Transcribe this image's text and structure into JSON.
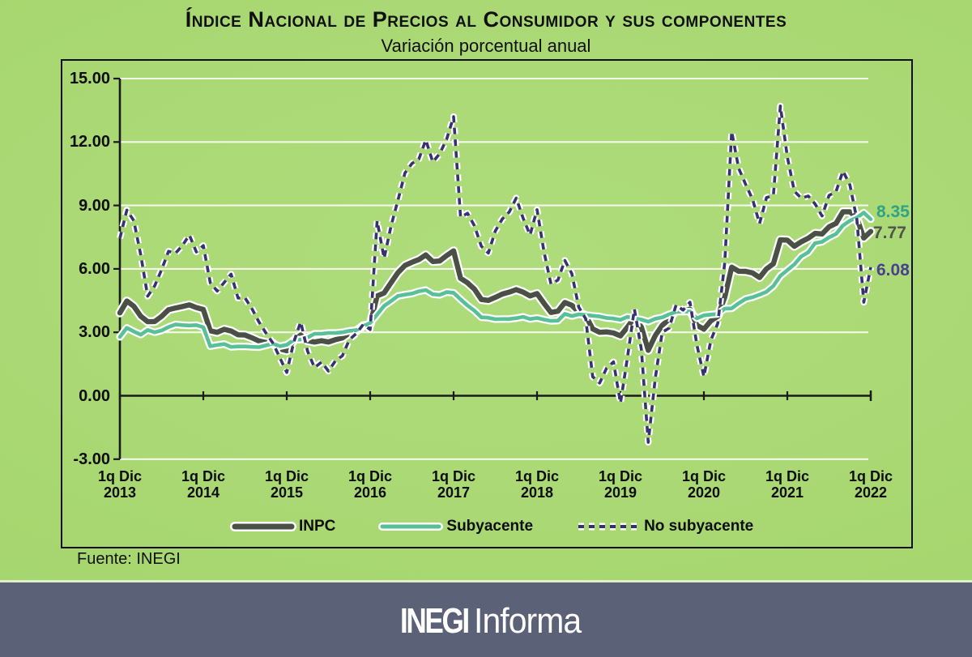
{
  "title": "Índice Nacional de Precios al Consumidor y sus componentes",
  "subtitle": "Variación porcentual anual",
  "source_note": "Fuente: INEGI",
  "footer": {
    "logo_bold": "INEGI",
    "logo_light": "Informa",
    "banner_color": "#5b6176"
  },
  "colors": {
    "background": "#a8d771",
    "frame_border": "#0f0f0f",
    "gridline": "#f4f9ea",
    "axis": "#1a1a1a",
    "halo": "#ffffff"
  },
  "chart_data": {
    "type": "line",
    "title": "Índice Nacional de Precios al Consumidor y sus componentes",
    "subtitle": "Variación porcentual anual",
    "xlabel": "",
    "ylabel": "",
    "ylim": [
      -3,
      15
    ],
    "grid": "horizontal",
    "legend_position": "bottom",
    "ytick_values": [
      15,
      12,
      9,
      6,
      3,
      0,
      -3
    ],
    "ytick_labels": [
      "15.00",
      "12.00",
      "9.00",
      "6.00",
      "3.00",
      "0.00",
      "-3.00"
    ],
    "x_tick_prefix": "1q Dic",
    "x_years": [
      "2013",
      "2014",
      "2015",
      "2016",
      "2017",
      "2018",
      "2019",
      "2020",
      "2021",
      "2022"
    ],
    "x_range": [
      "1q Dic 2013",
      "1q Dic 2022"
    ],
    "points_per_year": 12,
    "series": [
      {
        "name": "INPC",
        "style": "solid",
        "color": "#4a5045",
        "end_label": "7.77",
        "end_label_color": "#50534f",
        "values": [
          3.92,
          4.48,
          4.23,
          3.76,
          3.5,
          3.51,
          3.75,
          4.07,
          4.15,
          4.22,
          4.3,
          4.17,
          4.08,
          3.07,
          3.0,
          3.14,
          3.06,
          2.88,
          2.87,
          2.74,
          2.59,
          2.52,
          2.48,
          2.21,
          2.13,
          2.61,
          2.87,
          2.6,
          2.54,
          2.6,
          2.54,
          2.65,
          2.73,
          2.97,
          3.06,
          3.31,
          3.36,
          4.72,
          4.86,
          5.35,
          5.82,
          6.16,
          6.31,
          6.44,
          6.66,
          6.35,
          6.37,
          6.63,
          6.85,
          5.55,
          5.34,
          5.04,
          4.55,
          4.51,
          4.65,
          4.81,
          4.9,
          5.02,
          4.9,
          4.72,
          4.83,
          4.37,
          3.94,
          4.0,
          4.41,
          4.28,
          3.95,
          3.78,
          3.16,
          3.0,
          3.02,
          2.97,
          2.83,
          3.24,
          3.7,
          3.25,
          2.15,
          2.84,
          3.33,
          3.62,
          4.05,
          4.01,
          4.09,
          3.33,
          3.15,
          3.54,
          3.76,
          4.67,
          6.08,
          5.89,
          5.88,
          5.81,
          5.59,
          6.0,
          6.24,
          7.37,
          7.36,
          7.07,
          7.28,
          7.45,
          7.68,
          7.65,
          7.99,
          8.15,
          8.7,
          8.7,
          8.41,
          7.46,
          7.77
        ]
      },
      {
        "name": "Subyacente",
        "style": "solid",
        "color": "#58c096",
        "end_label": "8.35",
        "end_label_color": "#2ea385",
        "values": [
          2.78,
          3.21,
          3.04,
          2.89,
          3.11,
          3.0,
          3.09,
          3.25,
          3.37,
          3.34,
          3.32,
          3.34,
          3.24,
          2.34,
          2.4,
          2.45,
          2.31,
          2.33,
          2.33,
          2.31,
          2.3,
          2.38,
          2.47,
          2.34,
          2.41,
          2.64,
          2.66,
          2.76,
          2.93,
          2.93,
          2.97,
          2.97,
          3.0,
          3.07,
          3.1,
          3.29,
          3.44,
          3.84,
          4.25,
          4.48,
          4.72,
          4.78,
          4.83,
          4.94,
          5.0,
          4.8,
          4.77,
          4.9,
          4.87,
          4.56,
          4.27,
          4.02,
          3.71,
          3.69,
          3.62,
          3.63,
          3.63,
          3.67,
          3.73,
          3.63,
          3.68,
          3.6,
          3.54,
          3.55,
          3.87,
          3.77,
          3.85,
          3.82,
          3.78,
          3.75,
          3.68,
          3.65,
          3.59,
          3.73,
          3.66,
          3.6,
          3.5,
          3.64,
          3.71,
          3.85,
          3.97,
          3.99,
          3.98,
          3.66,
          3.8,
          3.84,
          3.87,
          4.12,
          4.13,
          4.37,
          4.58,
          4.66,
          4.78,
          4.92,
          5.19,
          5.67,
          5.94,
          6.21,
          6.59,
          6.78,
          7.22,
          7.28,
          7.49,
          7.65,
          8.05,
          8.28,
          8.42,
          8.66,
          8.35
        ]
      },
      {
        "name": "No subyacente",
        "style": "dashed",
        "color": "#37326f",
        "end_label": "6.08",
        "end_label_color": "#49418f",
        "values": [
          7.45,
          8.78,
          8.28,
          6.65,
          4.71,
          5.19,
          5.96,
          6.83,
          6.74,
          7.11,
          7.6,
          6.8,
          7.1,
          5.34,
          4.95,
          5.36,
          5.75,
          4.62,
          4.63,
          4.11,
          3.49,
          2.97,
          2.5,
          1.81,
          1.1,
          2.53,
          3.49,
          2.1,
          1.33,
          1.59,
          1.17,
          1.65,
          1.89,
          2.65,
          2.94,
          3.37,
          3.13,
          8.28,
          6.5,
          8.03,
          9.25,
          10.53,
          10.98,
          11.19,
          12.1,
          11.05,
          11.45,
          12.13,
          13.2,
          8.44,
          8.63,
          8.03,
          7.07,
          6.75,
          7.79,
          8.36,
          8.69,
          9.35,
          8.4,
          7.6,
          8.8,
          6.81,
          5.28,
          5.47,
          6.4,
          5.78,
          4.19,
          3.64,
          0.9,
          0.6,
          1.3,
          1.6,
          -0.35,
          1.8,
          4.1,
          2.19,
          -2.2,
          0.8,
          3.0,
          3.2,
          4.3,
          4.05,
          4.42,
          2.4,
          0.9,
          2.63,
          3.43,
          6.31,
          12.5,
          10.76,
          10.0,
          9.29,
          8.14,
          9.37,
          9.47,
          13.7,
          11.3,
          9.68,
          9.34,
          9.45,
          9.07,
          8.5,
          9.47,
          9.65,
          10.63,
          9.96,
          8.36,
          4.42,
          6.08
        ]
      }
    ]
  }
}
